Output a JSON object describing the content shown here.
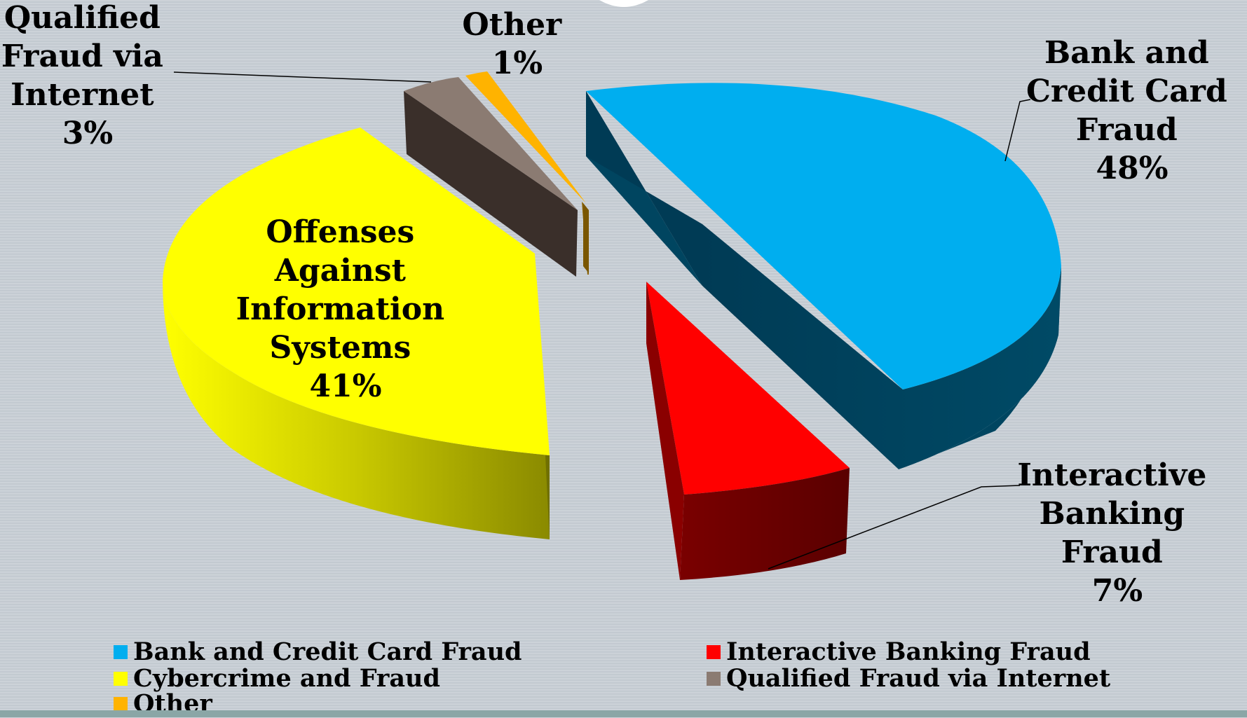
{
  "chart_data": {
    "type": "pie",
    "slices": [
      {
        "label": "Bank and Credit Card Fraud",
        "value": 48,
        "data_label": [
          "Bank and",
          "Credit Card",
          "Fraud",
          "48%"
        ],
        "color": "#00aeef",
        "side_color": "#004560"
      },
      {
        "label": "Interactive Banking Fraud",
        "value": 7,
        "data_label": [
          "Interactive",
          "Banking",
          "Fraud",
          "7%"
        ],
        "color": "#ff0000",
        "side_color": "#6e0000"
      },
      {
        "label": "Cybercrime and Fraud",
        "value": 41,
        "data_label": [
          "Offenses",
          "Against",
          "Information",
          "Systems",
          "41%"
        ],
        "color": "#ffff00",
        "side_color": "#a8a800"
      },
      {
        "label": "Qualified Fraud via Internet",
        "value": 3,
        "data_label": [
          "Qualified",
          "Fraud via",
          "Internet",
          "3%"
        ],
        "color": "#8b7b72",
        "side_color": "#3a2f2a"
      },
      {
        "label": "Other",
        "value": 1,
        "data_label": [
          "Other",
          "1%"
        ],
        "color": "#ffb300",
        "side_color": "#8a6200"
      }
    ],
    "legend_position": "bottom"
  }
}
